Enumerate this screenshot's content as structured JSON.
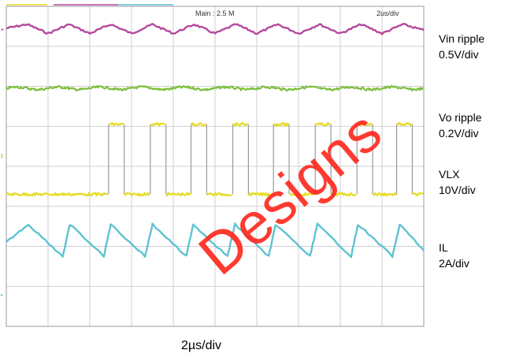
{
  "chart_data": {
    "type": "line",
    "title": "",
    "header_text": {
      "main": "Main : 2.5 M",
      "timebase": "2us/div"
    },
    "x_caption": "2µs/div",
    "divisions": {
      "x": 10,
      "y": 8
    },
    "switching_period_us": 2.0,
    "series": [
      {
        "name": "Vin ripple",
        "scale": "0.5V/div",
        "color": "#b5489e",
        "waveform": "triangle",
        "x": [
          0,
          1.0,
          2.0,
          3.0,
          4.0,
          5.0,
          6.0,
          7.0,
          8.0,
          9.0,
          10.0,
          11.0,
          12.0,
          13.0,
          14.0,
          15.0,
          16.0,
          17.0,
          18.0,
          19.0,
          20.0
        ],
        "div_level": [
          7.45,
          7.55,
          7.32,
          7.55,
          7.32,
          7.55,
          7.32,
          7.55,
          7.32,
          7.55,
          7.32,
          7.55,
          7.32,
          7.55,
          7.32,
          7.55,
          7.32,
          7.55,
          7.32,
          7.55,
          7.4
        ]
      },
      {
        "name": "Vo ripple",
        "scale": "0.2V/div",
        "color": "#7cbf3c",
        "waveform": "flat-noisy",
        "div_level_mean": 5.95
      },
      {
        "name": "VLX",
        "scale": "10V/div",
        "color": "#e6dc28",
        "waveform": "square",
        "high_div": 5.05,
        "low_div": 3.3,
        "pulse_starts_us": [
          4.9,
          6.9,
          8.85,
          10.85,
          12.8,
          14.8,
          16.8,
          18.7
        ],
        "pulse_width_us": 0.75,
        "edge_trace_color": "#999999"
      },
      {
        "name": "IL",
        "scale": "2A/div",
        "color": "#5ec3d2",
        "waveform": "sawtooth",
        "peak_div": 2.55,
        "valley_div": 1.75,
        "peaks_us": [
          1.05,
          3.05,
          5.0,
          7.0,
          8.95,
          10.95,
          12.9,
          14.9,
          16.85,
          18.85
        ]
      }
    ],
    "grid": true,
    "legend": "right"
  },
  "labels": [
    {
      "name": "Vin ripple",
      "scale": "0.5V/div"
    },
    {
      "name": "Vo ripple",
      "scale": "0.2V/div"
    },
    {
      "name": "VLX",
      "scale": "10V/div"
    },
    {
      "name": "IL",
      "scale": "2A/div"
    }
  ],
  "x_caption": "2µs/div",
  "watermark": "Designs",
  "colors": {
    "grid": "#cfcfcf",
    "border": "#9a9a9a",
    "watermark": "#ff2a1f"
  }
}
